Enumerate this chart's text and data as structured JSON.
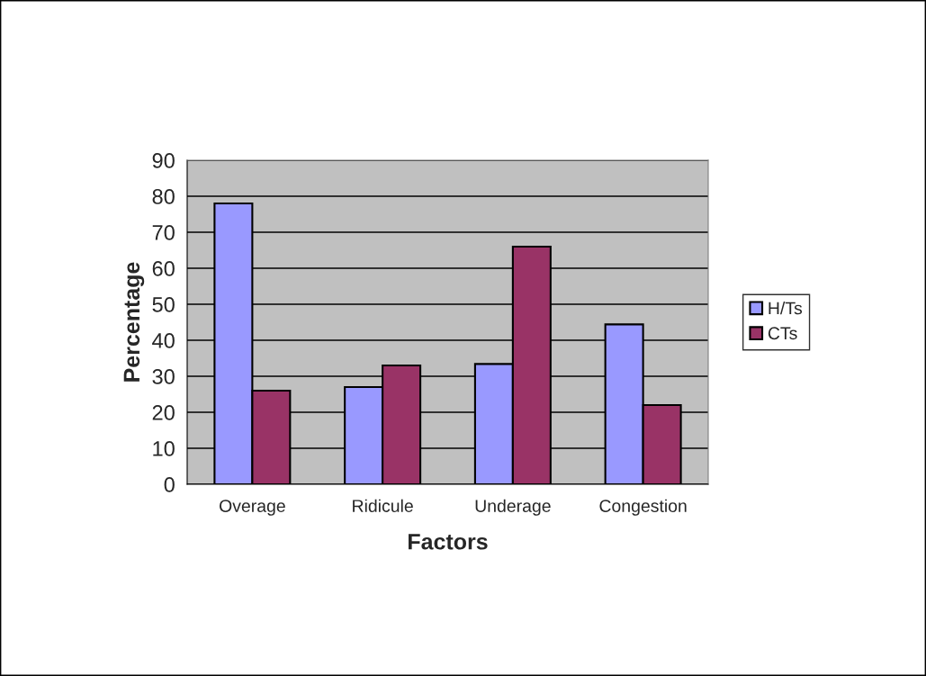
{
  "chart_data": {
    "type": "bar",
    "xlabel": "Factors",
    "ylabel": "Percentage",
    "categories": [
      "Overage",
      "Ridicule",
      "Underage",
      "Congestion"
    ],
    "series": [
      {
        "name": "H/Ts",
        "color": "#9999ff",
        "values": [
          78,
          27,
          33.4,
          44.4
        ]
      },
      {
        "name": "CTs",
        "color": "#993366",
        "values": [
          26,
          33,
          66,
          22
        ]
      }
    ],
    "ylim": [
      0,
      90
    ],
    "yticks": [
      0,
      10,
      20,
      30,
      40,
      50,
      60,
      70,
      80,
      90
    ],
    "grid": "y",
    "legend": "right"
  }
}
